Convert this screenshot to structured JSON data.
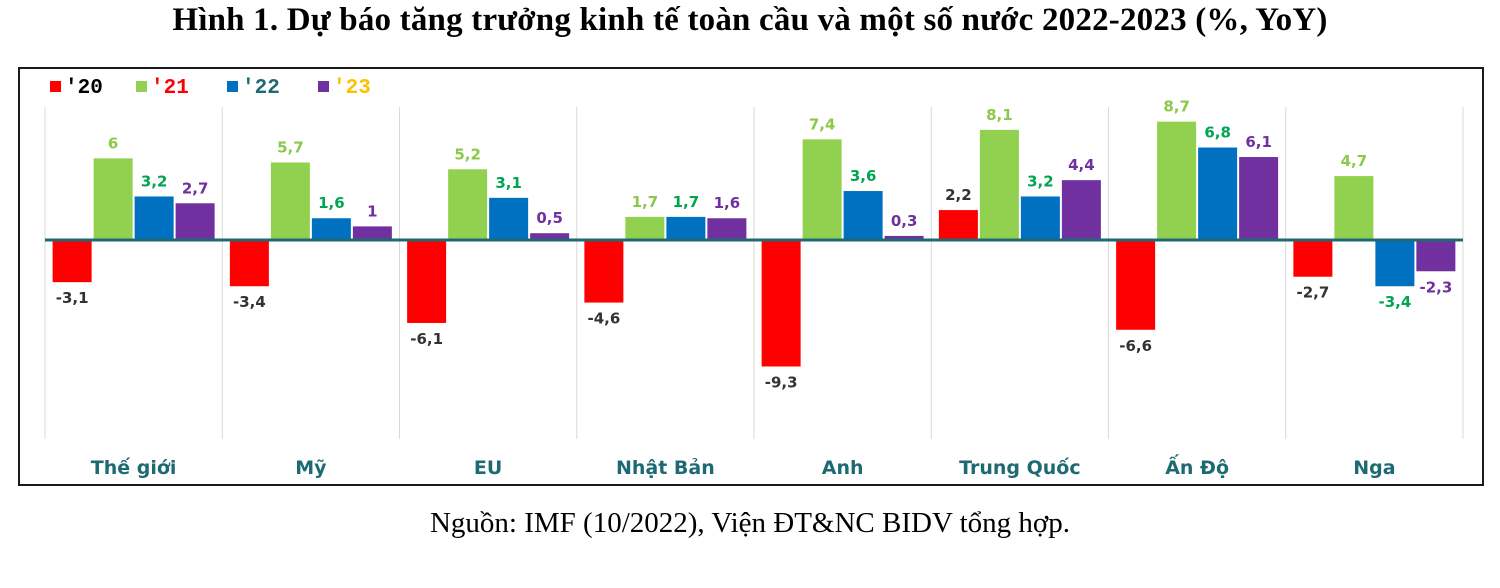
{
  "title": "Hình 1. Dự báo tăng trưởng kinh tế toàn cầu và một số nước 2022-2023 (%, YoY)",
  "source": "Nguồn: IMF (10/2022), Viện ĐT&NC BIDV tổng hợp.",
  "chart_data": {
    "type": "bar",
    "categories": [
      "Thế giới",
      "Mỹ",
      "EU",
      "Nhật Bản",
      "Anh",
      "Trung Quốc",
      "Ấn Độ",
      "Nga"
    ],
    "series": [
      {
        "name": "'20",
        "color": "#ff0000",
        "label_color": "#333333",
        "legend_text_color": "#000000",
        "values": [
          -3.1,
          -3.4,
          -6.1,
          -4.6,
          -9.3,
          2.2,
          -6.6,
          -2.7
        ],
        "labels": [
          "-3,1",
          "-3,4",
          "-6,1",
          "-4,6",
          "-9,3",
          "2,2",
          "-6,6",
          "-2,7"
        ]
      },
      {
        "name": "'21",
        "color": "#92d050",
        "label_color": "#8cc84b",
        "legend_text_color": "#ff0000",
        "values": [
          6,
          5.7,
          5.2,
          1.7,
          7.4,
          8.1,
          8.7,
          4.7
        ],
        "labels": [
          "6",
          "5,7",
          "5,2",
          "1,7",
          "7,4",
          "8,1",
          "8,7",
          "4,7"
        ]
      },
      {
        "name": "'22",
        "color": "#0070c0",
        "label_color": "#00a550",
        "legend_text_color": "#1e6a73",
        "values": [
          3.2,
          1.6,
          3.1,
          1.7,
          3.6,
          3.2,
          6.8,
          -3.4
        ],
        "labels": [
          "3,2",
          "1,6",
          "3,1",
          "1,7",
          "3,6",
          "3,2",
          "6,8",
          "-3,4"
        ]
      },
      {
        "name": "'23",
        "color": "#7030a0",
        "label_color": "#7030a0",
        "legend_text_color": "#ffc000",
        "values": [
          2.7,
          1,
          0.5,
          1.6,
          0.3,
          4.4,
          6.1,
          -2.3
        ],
        "labels": [
          "2,7",
          "1",
          "0,5",
          "1,6",
          "0,3",
          "4,4",
          "6,1",
          "-2,3"
        ]
      }
    ],
    "ylim": [
      -10.5,
      9.5
    ],
    "zero_line_color": "#1e6a73",
    "category_label_color": "#1e6a73",
    "legend_position": "top-left"
  }
}
